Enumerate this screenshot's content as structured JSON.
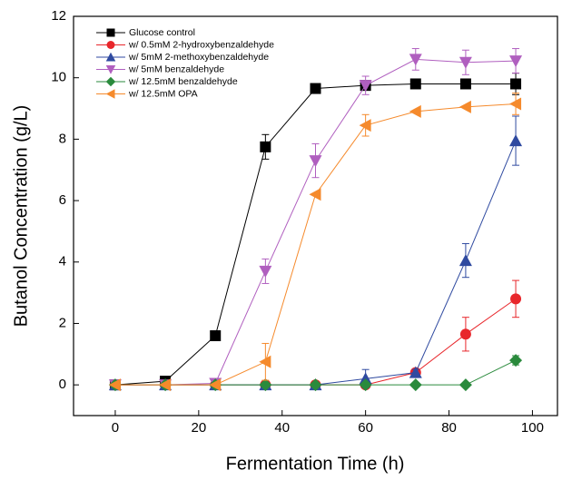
{
  "chart_data": {
    "type": "line",
    "x_label": "Fermentation Time (h)",
    "y_label": "Butanol Concentration (g/L)",
    "x": [
      0,
      12,
      24,
      36,
      48,
      60,
      72,
      84,
      96
    ],
    "xlim": [
      -10,
      106
    ],
    "xticks": [
      0,
      20,
      40,
      60,
      80,
      100
    ],
    "ylim": [
      -1,
      12
    ],
    "yticks": [
      0,
      2,
      4,
      6,
      8,
      10,
      12
    ],
    "legend": "upper-left",
    "series": [
      {
        "name": "Glucose control",
        "color": "#000000",
        "marker": "square",
        "values": [
          0,
          0.12,
          1.6,
          7.75,
          9.65,
          9.75,
          9.8,
          9.8,
          9.8
        ],
        "errors": [
          0,
          0,
          0,
          0.4,
          0,
          0.1,
          0,
          0,
          0.35
        ]
      },
      {
        "name": "w/ 0.5mM 2-hydroxybenzaldehyde",
        "color": "#e8262b",
        "marker": "circle",
        "values": [
          0,
          0,
          0,
          0,
          0,
          0,
          0.4,
          1.65,
          2.8
        ],
        "errors": [
          0,
          0,
          0,
          0,
          0,
          0,
          0.1,
          0.55,
          0.6
        ]
      },
      {
        "name": "w/ 5mM 2-methoxybenzaldehyde",
        "color": "#2f4aa0",
        "marker": "triangle-up",
        "values": [
          0,
          0,
          0,
          0,
          0,
          0.2,
          0.4,
          4.05,
          7.95
        ],
        "errors": [
          0,
          0,
          0,
          0,
          0,
          0.3,
          0.1,
          0.55,
          0.8
        ]
      },
      {
        "name": "w/ 5mM benzaldehyde",
        "color": "#b05fbf",
        "marker": "triangle-down",
        "values": [
          0,
          0,
          0.05,
          3.7,
          7.3,
          9.75,
          10.6,
          10.5,
          10.55
        ],
        "errors": [
          0,
          0,
          0,
          0.4,
          0.55,
          0.3,
          0.35,
          0.4,
          0.4
        ]
      },
      {
        "name": "w/ 12.5mM benzaldehyde",
        "color": "#2a8a3c",
        "marker": "diamond",
        "values": [
          0,
          0,
          0,
          0,
          0,
          0,
          0,
          0,
          0.8
        ],
        "errors": [
          0,
          0,
          0,
          0,
          0,
          0,
          0,
          0,
          0.15
        ]
      },
      {
        "name": "w/ 12.5mM OPA",
        "color": "#f58a2c",
        "marker": "triangle-left",
        "values": [
          0,
          0,
          0,
          0.75,
          6.2,
          8.45,
          8.9,
          9.05,
          9.15
        ],
        "errors": [
          0,
          0,
          0,
          0.6,
          0,
          0.35,
          0,
          0,
          0.35
        ]
      }
    ]
  }
}
